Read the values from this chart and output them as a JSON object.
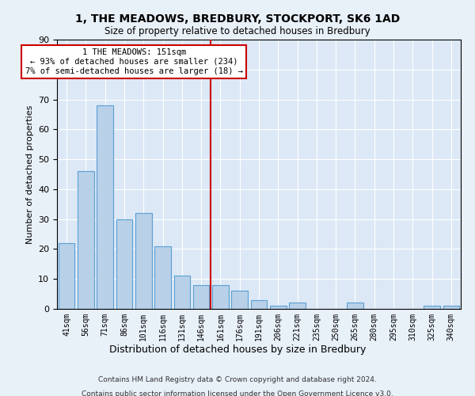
{
  "title": "1, THE MEADOWS, BREDBURY, STOCKPORT, SK6 1AD",
  "subtitle": "Size of property relative to detached houses in Bredbury",
  "xlabel": "Distribution of detached houses by size in Bredbury",
  "ylabel": "Number of detached properties",
  "categories": [
    "41sqm",
    "56sqm",
    "71sqm",
    "86sqm",
    "101sqm",
    "116sqm",
    "131sqm",
    "146sqm",
    "161sqm",
    "176sqm",
    "191sqm",
    "206sqm",
    "221sqm",
    "235sqm",
    "250sqm",
    "265sqm",
    "280sqm",
    "295sqm",
    "310sqm",
    "325sqm",
    "340sqm"
  ],
  "values": [
    22,
    46,
    68,
    30,
    32,
    21,
    11,
    8,
    8,
    6,
    3,
    1,
    2,
    0,
    0,
    2,
    0,
    0,
    0,
    1,
    1
  ],
  "bar_color": "#b8d0e8",
  "bar_edge_color": "#5a9fd4",
  "ylim": [
    0,
    90
  ],
  "yticks": [
    0,
    10,
    20,
    30,
    40,
    50,
    60,
    70,
    80,
    90
  ],
  "property_line_x": 7.5,
  "annotation_line1": "1 THE MEADOWS: 151sqm",
  "annotation_line2": "← 93% of detached houses are smaller (234)",
  "annotation_line3": "7% of semi-detached houses are larger (18) →",
  "annotation_box_color": "#ffffff",
  "annotation_border_color": "#cc0000",
  "footer_line1": "Contains HM Land Registry data © Crown copyright and database right 2024.",
  "footer_line2": "Contains public sector information licensed under the Open Government Licence v3.0.",
  "background_color": "#e8f0f8",
  "plot_background_color": "#dce8f5"
}
